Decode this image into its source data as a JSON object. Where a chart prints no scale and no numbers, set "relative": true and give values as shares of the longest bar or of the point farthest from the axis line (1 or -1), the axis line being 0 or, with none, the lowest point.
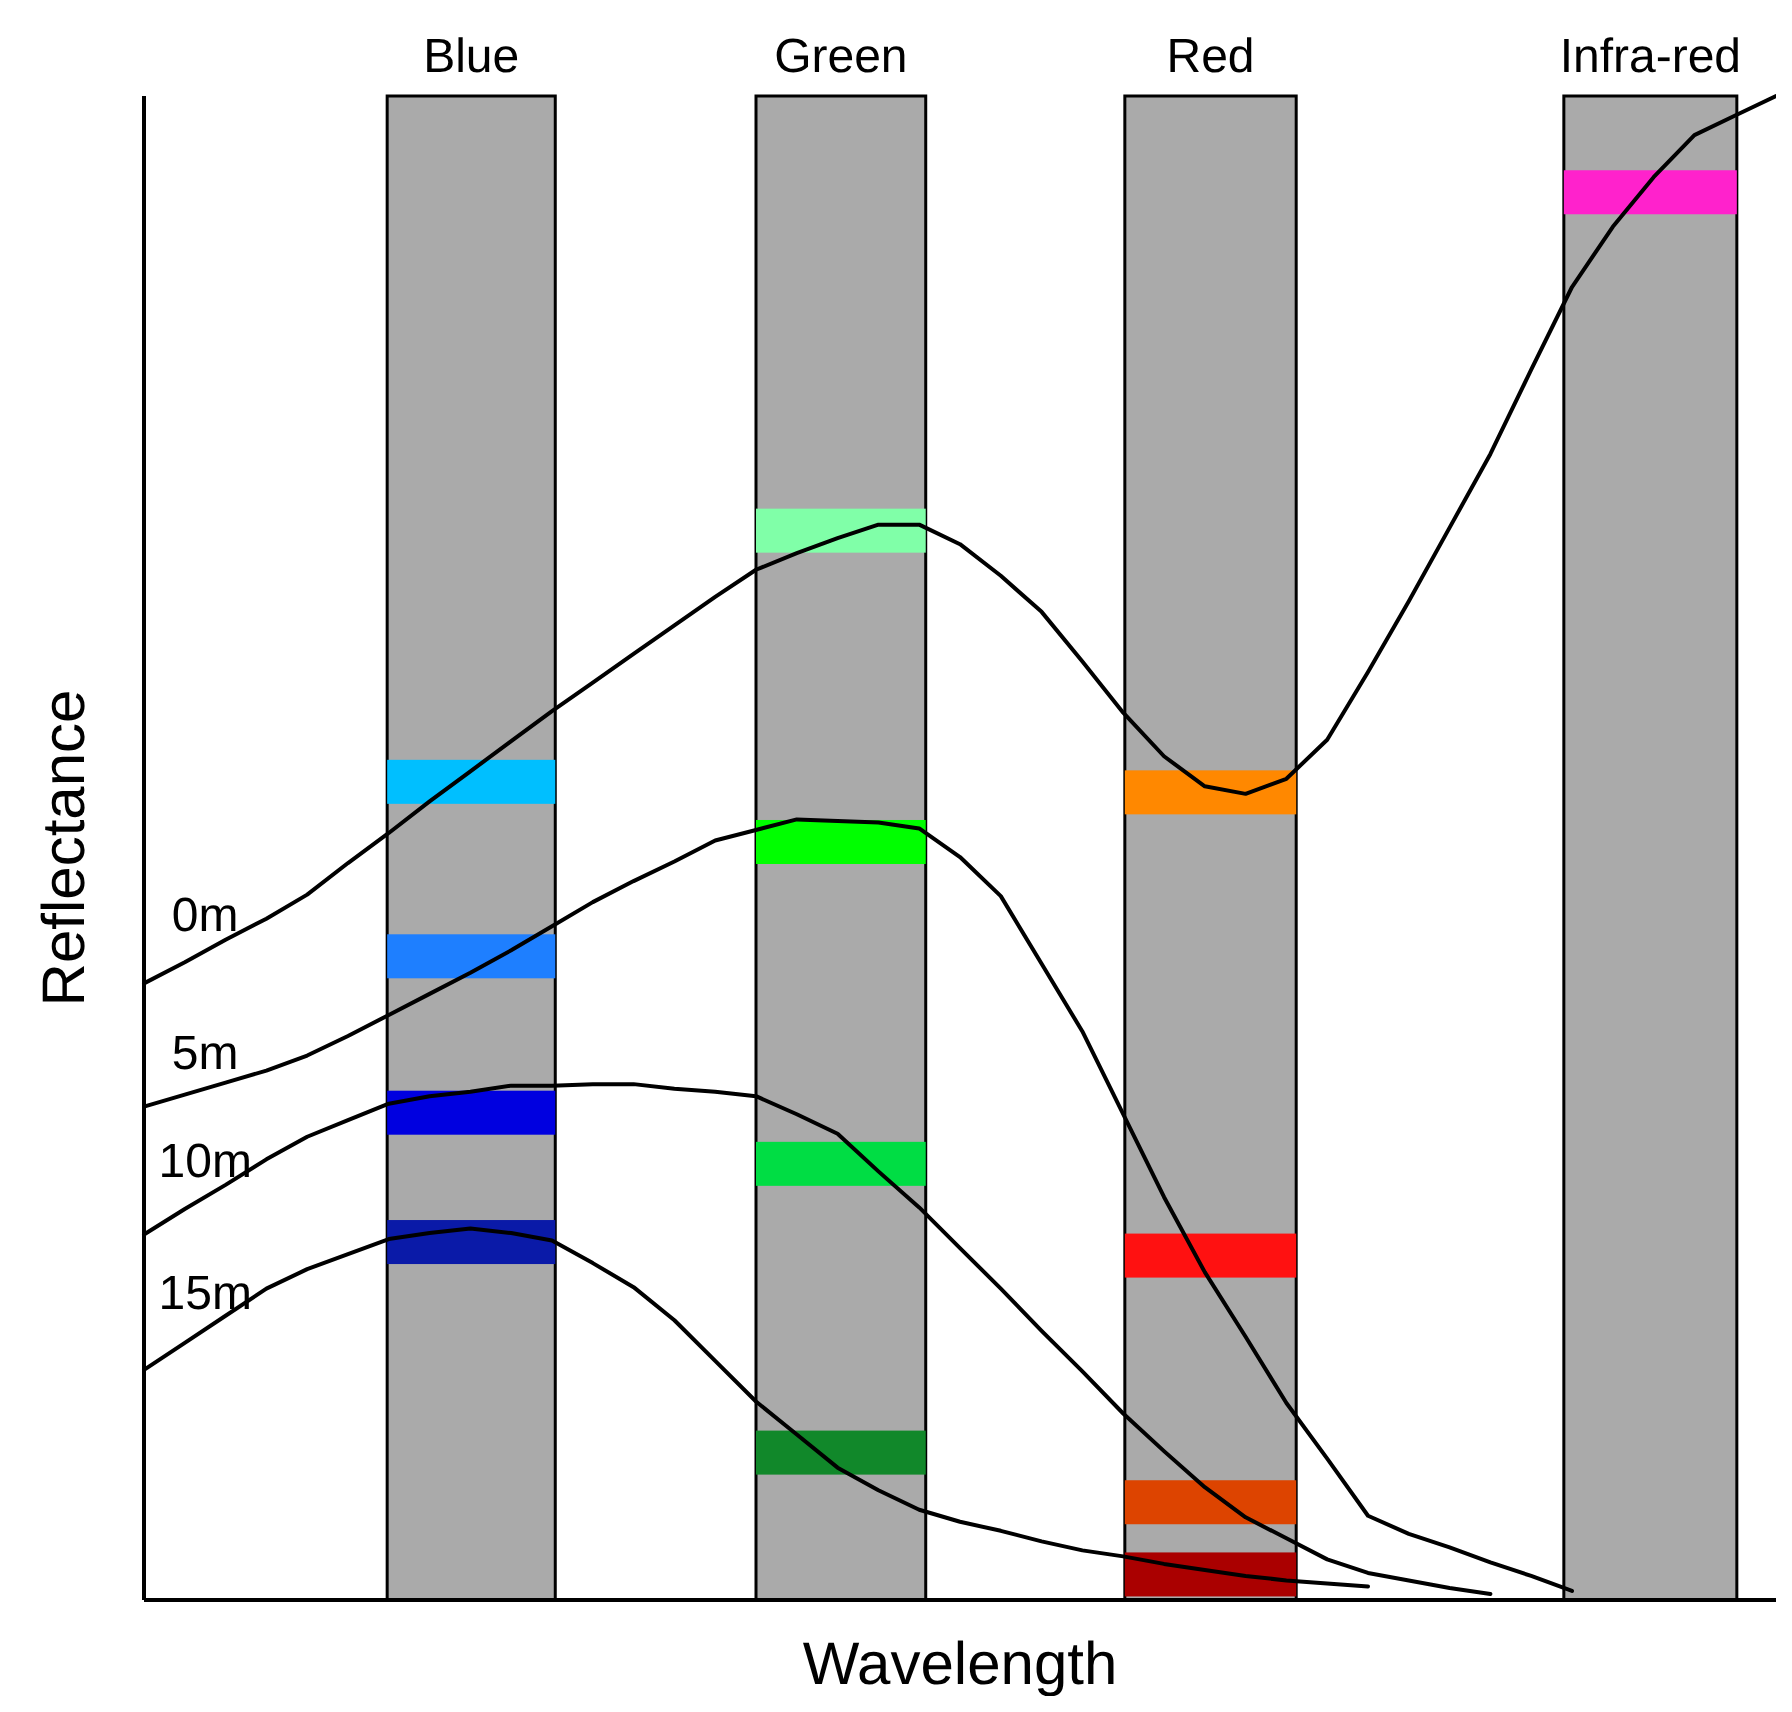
{
  "chart_data": {
    "type": "line",
    "relative": true,
    "xlabel": "Wavelength",
    "ylabel": "Reflectance",
    "legend": false,
    "line_style": "solid",
    "annotations": [
      "Blue",
      "Green",
      "Red",
      "Infra-red"
    ],
    "categories": [
      null,
      null,
      null,
      null,
      null,
      null,
      null,
      null,
      null,
      null,
      null,
      null,
      null,
      null,
      null,
      null,
      null,
      null,
      null,
      null,
      null,
      null,
      null,
      null,
      null,
      null,
      null,
      null,
      null,
      null,
      null,
      null,
      null,
      null,
      null,
      null,
      null,
      null,
      null,
      null,
      null
    ],
    "series": [
      {
        "name": "0m",
        "color": "#000000",
        "values": [
          0.41,
          0.424,
          0.439,
          0.453,
          0.469,
          0.49,
          0.51,
          0.531,
          0.551,
          0.571,
          0.591,
          0.61,
          0.629,
          0.648,
          0.667,
          0.685,
          0.696,
          0.706,
          0.715,
          0.715,
          0.702,
          0.681,
          0.657,
          0.624,
          0.59,
          0.561,
          0.541,
          0.536,
          0.546,
          0.572,
          0.617,
          0.664,
          0.713,
          0.762,
          0.818,
          0.873,
          0.913,
          0.946,
          0.974,
          0.987,
          1
        ]
      },
      {
        "name": "5m",
        "color": "#000000",
        "values": [
          0.328,
          0.336,
          0.344,
          0.352,
          0.362,
          0.375,
          0.389,
          0.403,
          0.417,
          0.432,
          0.448,
          0.464,
          0.478,
          0.491,
          0.505,
          0.512,
          0.519,
          0.518,
          0.517,
          0.513,
          0.494,
          0.468,
          0.423,
          0.378,
          0.323,
          0.268,
          0.218,
          0.175,
          0.131,
          0.094,
          0.056,
          0.044,
          0.035,
          0.025,
          0.016,
          0.006,
          null,
          null,
          null,
          null,
          null
        ]
      },
      {
        "name": "10m",
        "color": "#000000",
        "values": [
          0.243,
          0.26,
          0.276,
          0.293,
          0.308,
          0.319,
          0.33,
          0.335,
          0.338,
          0.342,
          0.342,
          0.343,
          0.343,
          0.34,
          0.338,
          0.335,
          0.323,
          0.31,
          0.285,
          0.261,
          0.234,
          0.207,
          0.179,
          0.152,
          0.124,
          0.099,
          0.075,
          0.055,
          0.041,
          0.027,
          0.018,
          0.013,
          0.008,
          0.004,
          null,
          null,
          null,
          null,
          null,
          null,
          null
        ]
      },
      {
        "name": "15m",
        "color": "#000000",
        "values": [
          0.153,
          0.171,
          0.189,
          0.207,
          0.22,
          0.23,
          0.24,
          0.244,
          0.247,
          0.244,
          0.239,
          0.224,
          0.208,
          0.186,
          0.159,
          0.132,
          0.11,
          0.088,
          0.073,
          0.06,
          0.052,
          0.046,
          0.039,
          0.033,
          0.029,
          0.024,
          0.02,
          0.016,
          0.013,
          0.011,
          0.009,
          null,
          null,
          null,
          null,
          null,
          null,
          null,
          null,
          null,
          null
        ]
      }
    ]
  }
}
